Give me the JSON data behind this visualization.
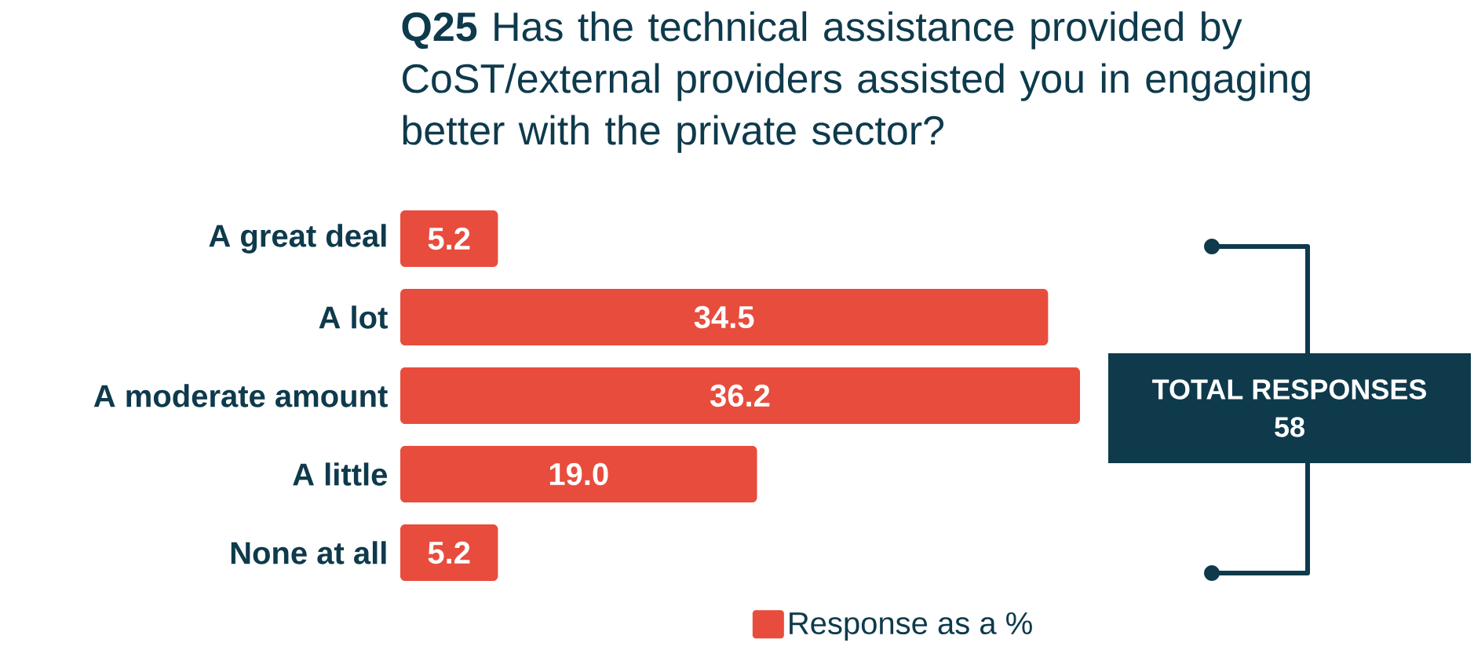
{
  "chart_data": {
    "type": "bar",
    "orientation": "horizontal",
    "legend": "bottom",
    "title": "**Q25** Has the technical assistance provided by CoST/external providers assisted you in engaging better with the private sector?",
    "categories": [
      "A great deal",
      "A lot",
      "A moderate amount",
      "A little",
      "None at all"
    ],
    "series": [
      {
        "name": "Response as a %",
        "color": "#e84c3d",
        "values": [
          5.2,
          34.5,
          36.2,
          19.0,
          5.2
        ],
        "value_labels": [
          "5.2",
          "34.5",
          "36.2",
          "19.0",
          "5.2"
        ]
      }
    ],
    "annotations": [
      "TOTAL RESPONSES",
      "58"
    ]
  }
}
